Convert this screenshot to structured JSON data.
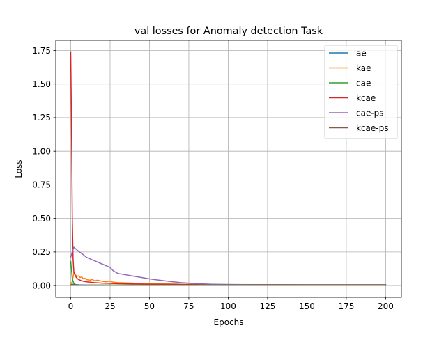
{
  "chart_data": {
    "type": "line",
    "title": "val losses for Anomaly detection Task",
    "xlabel": "Epochs",
    "ylabel": "Loss",
    "xlim": [
      -9.5,
      210
    ],
    "ylim": [
      -0.0875,
      1.825
    ],
    "xticks": [
      0,
      25,
      50,
      75,
      100,
      125,
      150,
      175,
      200
    ],
    "yticks": [
      0.0,
      0.25,
      0.5,
      0.75,
      1.0,
      1.25,
      1.5,
      1.75
    ],
    "ytick_labels": [
      "0.00",
      "0.25",
      "0.50",
      "0.75",
      "1.00",
      "1.25",
      "1.50",
      "1.75"
    ],
    "grid": true,
    "legend_position": "top-right",
    "series": [
      {
        "name": "ae",
        "color": "#1f77b4",
        "x": [
          0,
          1,
          2,
          5,
          10,
          25,
          50,
          100,
          150,
          200
        ],
        "values": [
          0.002,
          0.002,
          0.002,
          0.002,
          0.002,
          0.002,
          0.002,
          0.002,
          0.002,
          0.002
        ]
      },
      {
        "name": "kae",
        "color": "#ff7f0e",
        "x": [
          0,
          1,
          2,
          3,
          4,
          5,
          6,
          7,
          8,
          9,
          10,
          12,
          14,
          15,
          17,
          20,
          22,
          25,
          27,
          30,
          35,
          40,
          45,
          50,
          60,
          70,
          80,
          100,
          125,
          150,
          175,
          200
        ],
        "values": [
          0.01,
          0.03,
          0.1,
          0.08,
          0.07,
          0.072,
          0.06,
          0.065,
          0.05,
          0.055,
          0.045,
          0.04,
          0.045,
          0.035,
          0.04,
          0.032,
          0.028,
          0.033,
          0.025,
          0.022,
          0.02,
          0.018,
          0.016,
          0.015,
          0.012,
          0.01,
          0.009,
          0.008,
          0.007,
          0.006,
          0.006,
          0.006
        ]
      },
      {
        "name": "cae",
        "color": "#2ca02c",
        "x": [
          0,
          1,
          2,
          3,
          5,
          10,
          25,
          50,
          100,
          150,
          200
        ],
        "values": [
          0.18,
          0.05,
          0.015,
          0.008,
          0.005,
          0.003,
          0.002,
          0.002,
          0.002,
          0.002,
          0.002
        ]
      },
      {
        "name": "kcae",
        "color": "#d62728",
        "x": [
          0,
          0.5,
          1,
          1.5,
          2,
          3,
          4,
          5,
          7,
          10,
          15,
          20,
          30,
          50,
          75,
          100,
          150,
          200
        ],
        "values": [
          1.74,
          1.2,
          0.5,
          0.2,
          0.1,
          0.07,
          0.055,
          0.045,
          0.035,
          0.028,
          0.022,
          0.018,
          0.014,
          0.01,
          0.008,
          0.007,
          0.006,
          0.006
        ]
      },
      {
        "name": "cae-ps",
        "color": "#9467bd",
        "x": [
          0,
          1,
          2,
          3,
          5,
          8,
          10,
          15,
          20,
          25,
          27,
          30,
          35,
          40,
          45,
          50,
          55,
          60,
          65,
          70,
          75,
          80,
          90,
          100,
          125,
          150,
          175,
          200
        ],
        "values": [
          0.21,
          0.25,
          0.285,
          0.275,
          0.255,
          0.23,
          0.21,
          0.185,
          0.16,
          0.135,
          0.11,
          0.09,
          0.08,
          0.07,
          0.06,
          0.05,
          0.042,
          0.035,
          0.028,
          0.022,
          0.018,
          0.014,
          0.01,
          0.008,
          0.006,
          0.005,
          0.005,
          0.005
        ]
      },
      {
        "name": "kcae-ps",
        "color": "#8c564b",
        "x": [
          0,
          1,
          2,
          3,
          5,
          10,
          25,
          50,
          100,
          150,
          200
        ],
        "values": [
          0.003,
          0.01,
          0.008,
          0.006,
          0.005,
          0.004,
          0.004,
          0.004,
          0.004,
          0.004,
          0.004
        ]
      }
    ]
  }
}
